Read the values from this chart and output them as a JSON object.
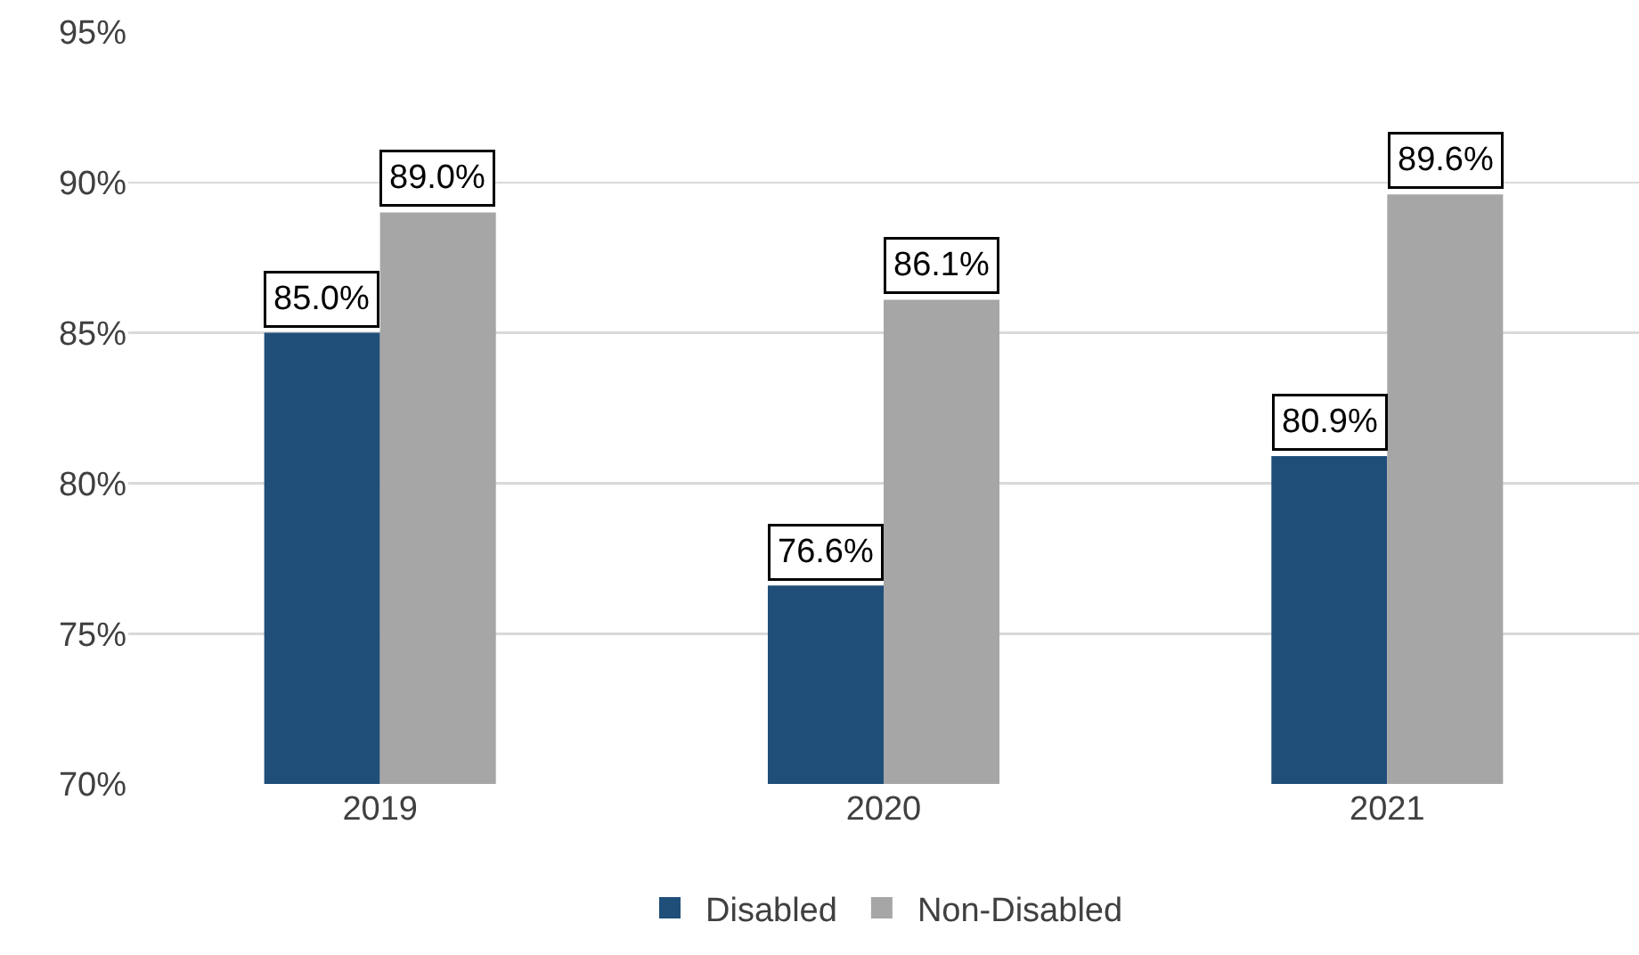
{
  "chart_data": {
    "type": "bar",
    "categories": [
      "2019",
      "2020",
      "2021"
    ],
    "series": [
      {
        "name": "Disabled",
        "color": "#1f4e79",
        "values": [
          85.0,
          76.6,
          80.9
        ],
        "value_labels": [
          "85.0%",
          "76.6%",
          "80.9%"
        ]
      },
      {
        "name": "Non-Disabled",
        "color": "#a6a6a6",
        "values": [
          89.0,
          86.1,
          89.6
        ],
        "value_labels": [
          "89.0%",
          "86.1%",
          "89.6%"
        ]
      }
    ],
    "ylim": [
      70,
      95
    ],
    "yticks": [
      {
        "value": 70,
        "label": "70%"
      },
      {
        "value": 75,
        "label": "75%"
      },
      {
        "value": 80,
        "label": "80%"
      },
      {
        "value": 85,
        "label": "85%"
      },
      {
        "value": 90,
        "label": "90%"
      },
      {
        "value": 95,
        "label": "95%"
      }
    ],
    "grid": "y",
    "legend": "bottom"
  }
}
